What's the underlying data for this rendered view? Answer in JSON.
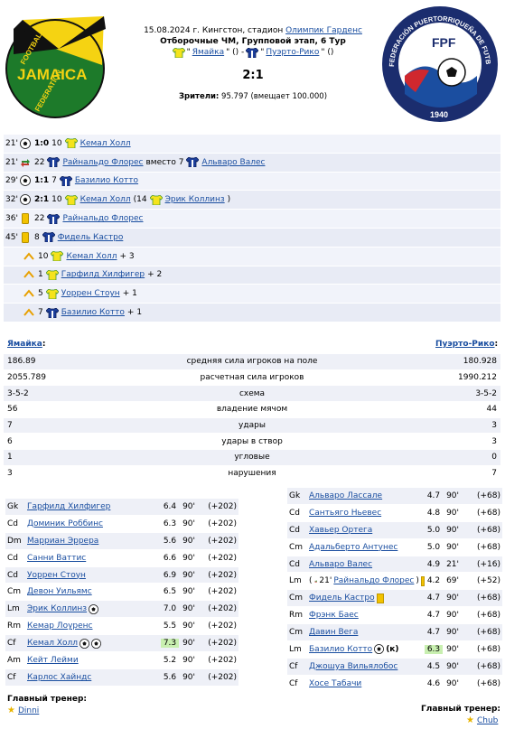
{
  "header": {
    "date_line_prefix": "15.08.2024 г. Кингстон, стадион ",
    "stadium_link": "Олимпик Гарденс",
    "tournament": "Отборочные ЧМ, Групповой этап, 6 Тур",
    "home_team": "Ямайка",
    "away_team": "Пуэрто-Рико",
    "sep1": "\"",
    "sep2": "\" () - ",
    "sep3": "\" ()",
    "score": "2:1",
    "spectators_label": "Зрители:",
    "spectators_value": " 95.797 (вмещает 100.000)"
  },
  "logos": {
    "home_text_top": "FOOTBALL",
    "home_text_mid": "JAMAICA",
    "home_text_bot": "FEDERATION",
    "away_text_arc": "FEDERACIÓN PUERTORRIQUEÑA DE FUTBOL",
    "away_initials": "FPF",
    "away_year": "1940"
  },
  "events": [
    {
      "min": "21'",
      "type": "goal",
      "score": "1:0",
      "num": "10",
      "team": "home",
      "player": "Кемал Холл",
      "extra": ""
    },
    {
      "min": "21'",
      "type": "sub",
      "num": "22",
      "team": "away",
      "player": "Райнальдо Флорес",
      "mid": " вместо 7 ",
      "player2": "Альваро Валес"
    },
    {
      "min": "29'",
      "type": "goal",
      "score": "1:1",
      "num": "7",
      "team": "away",
      "player": "Базилио Котто",
      "extra": ""
    },
    {
      "min": "32'",
      "type": "goal",
      "score": "2:1",
      "num": "10",
      "team": "home",
      "player": "Кемал Холл",
      "assist_pre": " (14 ",
      "assist": "Эрик Коллинз",
      "assist_post": ")"
    },
    {
      "min": "36'",
      "type": "yellow",
      "num": "22",
      "team": "away",
      "player": "Райнальдо Флорес"
    },
    {
      "min": "45'",
      "type": "yellow",
      "num": "8",
      "team": "away",
      "player": "Фидель Кастро"
    },
    {
      "type": "boost",
      "num": "10",
      "team": "home",
      "player": "Кемал Холл",
      "bonus": " + 3"
    },
    {
      "type": "boost",
      "num": "1",
      "team": "home",
      "player": "Гарфилд Хилфигер",
      "bonus": " + 2"
    },
    {
      "type": "boost",
      "num": "5",
      "team": "home",
      "player": "Уоррен Стоун",
      "bonus": " + 1"
    },
    {
      "type": "boost",
      "num": "7",
      "team": "away",
      "player": "Базилио Котто",
      "bonus": " + 1"
    }
  ],
  "stats_header": {
    "home": "Ямайка",
    "away": "Пуэрто-Рико",
    "colon": ":"
  },
  "stats": [
    {
      "l": "186.89",
      "c": "средняя сила игроков на поле",
      "r": "180.928"
    },
    {
      "l": "2055.789",
      "c": "расчетная сила игроков",
      "r": "1990.212"
    },
    {
      "l": "3-5-2",
      "c": "схема",
      "r": "3-5-2"
    },
    {
      "l": "56",
      "c": "владение мячом",
      "r": "44"
    },
    {
      "l": "7",
      "c": "удары",
      "r": "3"
    },
    {
      "l": "6",
      "c": "удары в створ",
      "r": "3"
    },
    {
      "l": "1",
      "c": "угловые",
      "r": "0"
    },
    {
      "l": "3",
      "c": "нарушения",
      "r": "7"
    }
  ],
  "home_players": [
    {
      "pos": "Gk",
      "name": "Гарфилд Хилфигер",
      "rate": "6.4",
      "min": "90'",
      "plus": "(+202)"
    },
    {
      "pos": "Cd",
      "name": "Доминик Роббинс",
      "rate": "6.3",
      "min": "90'",
      "plus": "(+202)"
    },
    {
      "pos": "Dm",
      "name": "Марриан Эррера",
      "rate": "5.6",
      "min": "90'",
      "plus": "(+202)"
    },
    {
      "pos": "Cd",
      "name": "Санни Ваттис",
      "rate": "6.6",
      "min": "90'",
      "plus": "(+202)"
    },
    {
      "pos": "Cd",
      "name": "Уоррен Стоун",
      "rate": "6.9",
      "min": "90'",
      "plus": "(+202)"
    },
    {
      "pos": "Cm",
      "name": "Девон Уильямс",
      "rate": "6.5",
      "min": "90'",
      "plus": "(+202)"
    },
    {
      "pos": "Lm",
      "name": "Эрик Коллинз",
      "rate": "7.0",
      "min": "90'",
      "plus": "(+202)",
      "balls": 1
    },
    {
      "pos": "Rm",
      "name": "Кемар Лоуренс",
      "rate": "5.5",
      "min": "90'",
      "plus": "(+202)"
    },
    {
      "pos": "Cf",
      "name": "Кемал Холл",
      "rate": "7.3",
      "min": "90'",
      "plus": "(+202)",
      "balls": 2,
      "hi": true
    },
    {
      "pos": "Am",
      "name": "Кейт Лейми",
      "rate": "5.2",
      "min": "90'",
      "plus": "(+202)"
    },
    {
      "pos": "Cf",
      "name": "Карлос Хайндс",
      "rate": "5.6",
      "min": "90'",
      "plus": "(+202)"
    }
  ],
  "away_players": [
    {
      "pos": "Gk",
      "name": "Альваро Лассале",
      "rate": "4.7",
      "min": "90'",
      "plus": "(+68)"
    },
    {
      "pos": "Cd",
      "name": "Сантьяго Ньевес",
      "rate": "4.8",
      "min": "90'",
      "plus": "(+68)"
    },
    {
      "pos": "Cd",
      "name": "Хавьер Ортега",
      "rate": "5.0",
      "min": "90'",
      "plus": "(+68)"
    },
    {
      "pos": "Cm",
      "name": "Адальберто Антунес",
      "rate": "5.0",
      "min": "90'",
      "plus": "(+68)"
    },
    {
      "pos": "Cd",
      "name": "Альваро Валес",
      "rate": "4.9",
      "min": "21'",
      "plus": "(+16)"
    },
    {
      "pos": "Lm",
      "name": "Райнальдо Флорес",
      "sub_pre": "(",
      "sub_min": " 21' ",
      "sub_post": ")",
      "card": true,
      "rate": "4.2",
      "min": "69'",
      "plus": "(+52)"
    },
    {
      "pos": "Cm",
      "name": "Фидель Кастро",
      "card": true,
      "rate": "4.7",
      "min": "90'",
      "plus": "(+68)"
    },
    {
      "pos": "Rm",
      "name": "Фрэнк Баес",
      "rate": "4.7",
      "min": "90'",
      "plus": "(+68)"
    },
    {
      "pos": "Cm",
      "name": "Давин Вега",
      "rate": "4.7",
      "min": "90'",
      "plus": "(+68)"
    },
    {
      "pos": "Lm",
      "name": "Базилио Котто",
      "balls": 1,
      "capt": "(к)",
      "rate": "6.3",
      "min": "90'",
      "plus": "(+68)",
      "hi": true
    },
    {
      "pos": "Cf",
      "name": "Джошуа Вильялобос",
      "rate": "4.5",
      "min": "90'",
      "plus": "(+68)"
    },
    {
      "pos": "Cf",
      "name": "Хосе Табачи",
      "rate": "4.6",
      "min": "90'",
      "plus": "(+68)"
    }
  ],
  "coaches": {
    "label": "Главный тренер:",
    "home": "Dinni",
    "away": "Chub"
  },
  "colors": {
    "home_shirt": "#f5e31c",
    "home_shirt_trim": "#4a9a30",
    "away_shirt": "#1d3f9c",
    "away_shirt_trim": "#c0392b",
    "row_bg": "#eef0f7",
    "rating_highlight": "#c8efb0",
    "link": "#1a4ea0"
  }
}
